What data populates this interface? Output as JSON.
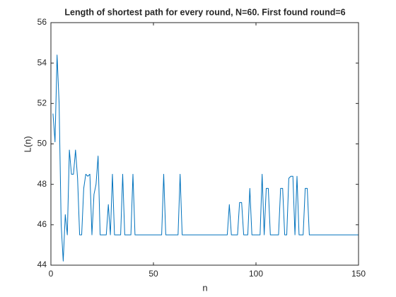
{
  "chart_data": {
    "type": "line",
    "title": "Length of shortest path for every round, N=60. First found round=6",
    "xlabel": "n",
    "ylabel": "L(n)",
    "x": [
      1,
      2,
      3,
      4,
      5,
      6,
      7,
      8,
      9,
      10,
      11,
      12,
      13,
      14,
      15,
      16,
      17,
      18,
      19,
      20,
      21,
      22,
      23,
      24,
      25,
      26,
      27,
      28,
      29,
      30,
      31,
      32,
      33,
      34,
      35,
      36,
      37,
      38,
      39,
      40,
      41,
      42,
      43,
      44,
      45,
      46,
      47,
      48,
      49,
      50,
      51,
      52,
      53,
      54,
      55,
      56,
      57,
      58,
      59,
      60,
      61,
      62,
      63,
      64,
      65,
      66,
      67,
      68,
      69,
      70,
      71,
      72,
      73,
      74,
      75,
      76,
      77,
      78,
      79,
      80,
      81,
      82,
      83,
      84,
      85,
      86,
      87,
      88,
      89,
      90,
      91,
      92,
      93,
      94,
      95,
      96,
      97,
      98,
      99,
      100,
      101,
      102,
      103,
      104,
      105,
      106,
      107,
      108,
      109,
      110,
      111,
      112,
      113,
      114,
      115,
      116,
      117,
      118,
      119,
      120,
      121,
      122,
      123,
      124,
      125,
      126,
      127,
      128,
      129,
      130,
      131,
      132,
      133,
      134,
      135,
      136,
      137,
      138,
      139,
      140,
      141,
      142,
      143,
      144,
      145,
      146,
      147,
      148,
      149,
      150
    ],
    "values": [
      51.5,
      50.1,
      54.4,
      52,
      46,
      44.2,
      46.5,
      45.5,
      49.7,
      48.5,
      48.5,
      49.7,
      48.3,
      45.5,
      45.5,
      47.8,
      48.5,
      48.4,
      48.5,
      45.5,
      47.5,
      48,
      49.4,
      45.5,
      45.5,
      45.5,
      45.5,
      47,
      45.5,
      48.5,
      45.5,
      45.5,
      45.5,
      45.5,
      48.5,
      45.5,
      45.5,
      45.5,
      45.5,
      48.5,
      45.5,
      45.5,
      45.5,
      45.5,
      45.5,
      45.5,
      45.5,
      45.5,
      45.5,
      45.5,
      45.5,
      45.5,
      45.5,
      45.5,
      48.5,
      45.5,
      45.5,
      45.5,
      45.5,
      45.5,
      45.5,
      45.5,
      48.5,
      45.5,
      45.5,
      45.5,
      45.5,
      45.5,
      45.5,
      45.5,
      45.5,
      45.5,
      45.5,
      45.5,
      45.5,
      45.5,
      45.5,
      45.5,
      45.5,
      45.5,
      45.5,
      45.5,
      45.5,
      45.5,
      45.5,
      45.5,
      47,
      45.5,
      45.5,
      45.5,
      45.5,
      47.1,
      47.1,
      45.5,
      45.5,
      45.5,
      47.8,
      45.5,
      45.5,
      45.5,
      45.5,
      45.5,
      48.5,
      45.5,
      47.8,
      47.8,
      45.5,
      45.5,
      45.5,
      45.5,
      45.5,
      47.8,
      47.8,
      45.5,
      45.5,
      48.3,
      48.4,
      48.4,
      45.5,
      48.4,
      45.5,
      45.5,
      45.5,
      47.8,
      47.8,
      45.5,
      45.5,
      45.5,
      45.5,
      45.5,
      45.5,
      45.5,
      45.5,
      45.5,
      45.5,
      45.5,
      45.5,
      45.5,
      45.5,
      45.5,
      45.5,
      45.5,
      45.5,
      45.5,
      45.5,
      45.5,
      45.5,
      45.5,
      45.5,
      45.5
    ],
    "color": "#0072bd",
    "xlim": [
      0,
      150
    ],
    "xticks": [
      0,
      50,
      100,
      150
    ],
    "ylim": [
      44,
      56
    ],
    "yticks": [
      44,
      46,
      48,
      50,
      52,
      54,
      56
    ],
    "grid": false
  }
}
